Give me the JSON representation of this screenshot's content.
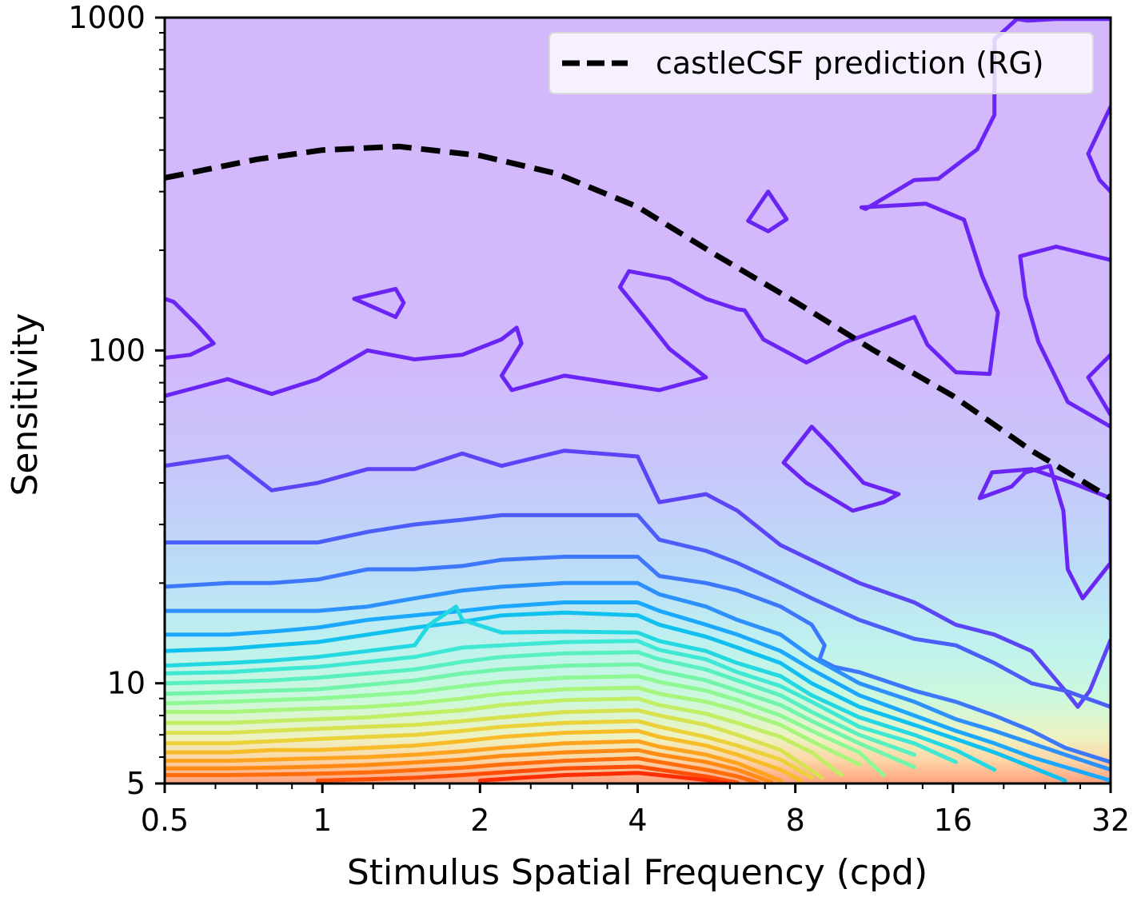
{
  "chart_data": {
    "type": "contour",
    "xlabel": "Stimulus Spatial Frequency (cpd)",
    "ylabel": "Sensitivity",
    "xscale": "log2",
    "yscale": "log10",
    "xlim": [
      0.5,
      32
    ],
    "ylim": [
      5,
      1000
    ],
    "x_ticks": [
      "0.5",
      "1",
      "2",
      "4",
      "8",
      "16",
      "32"
    ],
    "x_tick_values": [
      0.5,
      1,
      2,
      4,
      8,
      16,
      32
    ],
    "y_ticks": [
      "5",
      "10",
      "100",
      "1000"
    ],
    "y_tick_values": [
      5,
      10,
      100,
      1000
    ],
    "legend": {
      "placement": "top-right",
      "entries": [
        {
          "label": "castleCSF prediction (RG)",
          "style": "dashed",
          "color": "#000000"
        }
      ]
    },
    "series": [
      {
        "name": "castleCSF prediction (RG)",
        "style": "dashed",
        "x": [
          0.5,
          0.75,
          1.0,
          1.4,
          2.0,
          2.8,
          4.0,
          5.6,
          8.0,
          11.3,
          16.0,
          22.6,
          32.0
        ],
        "y": [
          330,
          375,
          400,
          410,
          385,
          340,
          270,
          195,
          140,
          100,
          73,
          50,
          36
        ]
      }
    ],
    "contours": [
      {
        "level": 1,
        "color": "#6a25f4",
        "x": [
          0.5,
          0.66,
          0.8,
          0.98,
          1.22,
          1.5,
          1.85,
          2.2,
          2.35,
          2.4,
          2.2,
          2.3,
          2.9,
          4.4,
          5.4,
          4.6,
          4.1,
          3.7,
          3.85,
          4.6,
          5.4,
          6.2,
          6.4,
          6.95,
          8.4,
          10.0,
          13.5,
          14.3,
          16.2,
          18.8,
          19.5,
          18.2,
          16.8,
          14.2,
          10.7,
          10.9,
          13.5,
          15.0,
          17.8,
          19.2,
          19.2,
          21.2,
          22.2,
          25.2,
          32.0
        ],
        "y": [
          73,
          82,
          74,
          82,
          100,
          94,
          97,
          108,
          117,
          105,
          84,
          76,
          84,
          76,
          83,
          101,
          127,
          155,
          173,
          164,
          143,
          133,
          132,
          108,
          92,
          106,
          126,
          104,
          86,
          85,
          130,
          167,
          247,
          276,
          269,
          266,
          325,
          328,
          402,
          510,
          860,
          990,
          980,
          990,
          990
        ]
      },
      {
        "level": 1,
        "color": "#6a25f4",
        "x": [
          0.5,
          0.52,
          0.58,
          0.62,
          0.56,
          0.5
        ],
        "y": [
          143,
          140,
          118,
          105,
          97,
          95
        ]
      },
      {
        "level": 1,
        "color": "#6a25f4",
        "x": [
          1.15,
          1.38,
          1.43,
          1.38,
          1.15
        ],
        "y": [
          143,
          153,
          139,
          126,
          143
        ]
      },
      {
        "level": 1,
        "color": "#6a25f4",
        "x": [
          6.5,
          7.1,
          7.7,
          7.1,
          6.5
        ],
        "y": [
          245,
          300,
          248,
          228,
          245
        ]
      },
      {
        "level": 1,
        "color": "#6a25f4",
        "x": [
          32.0,
          29.0,
          30.5,
          32.0
        ],
        "y": [
          540,
          390,
          325,
          300
        ]
      },
      {
        "level": 1,
        "color": "#6a25f4",
        "x": [
          32.0,
          25.2,
          21.5,
          22.0,
          23.3,
          26.5,
          32.0
        ],
        "y": [
          187,
          205,
          192,
          145,
          106,
          70,
          59
        ]
      },
      {
        "level": 1,
        "color": "#6a25f4",
        "x": [
          32.0,
          29.0,
          32.0
        ],
        "y": [
          97,
          83,
          64
        ]
      },
      {
        "level": 1,
        "color": "#6a25f4",
        "x": [
          7.6,
          8.6,
          9.3,
          10.8,
          12.6,
          11.8,
          10.3,
          8.4,
          7.6
        ],
        "y": [
          46,
          59,
          52,
          40,
          37,
          35,
          33,
          40,
          46
        ]
      },
      {
        "level": 1,
        "color": "#6a25f4",
        "x": [
          18.0,
          20.7,
          22.0,
          24.5,
          26.0,
          26.5,
          28.3,
          32.0,
          32.0,
          27.0,
          22.6,
          19.0,
          18.0
        ],
        "y": [
          36,
          39,
          43,
          45,
          33,
          22,
          18,
          23,
          36,
          40,
          44,
          43,
          36
        ]
      },
      {
        "level": 2,
        "color": "#5c44f7",
        "x": [
          0.5,
          0.66,
          0.8,
          0.98,
          1.22,
          1.5,
          1.85,
          2.2,
          2.9,
          4.0,
          4.4,
          5.4,
          6.2,
          7.5,
          10.6,
          13.5,
          16.2,
          19.2,
          22.6,
          26.2,
          27.7,
          29.2,
          32.0
        ],
        "y": [
          45,
          48,
          38,
          40,
          44,
          44,
          49,
          45,
          50,
          48,
          35,
          37,
          33,
          26,
          20,
          17.5,
          15,
          14,
          12.5,
          9.5,
          8.5,
          9.5,
          13.5
        ]
      },
      {
        "level": 3,
        "color": "#4c5ef9",
        "x": [
          0.5,
          0.66,
          0.8,
          0.98,
          1.22,
          1.5,
          1.85,
          2.2,
          2.9,
          4.0,
          4.4,
          5.4,
          6.2,
          7.5,
          8.6,
          10.6,
          13.5,
          16.2,
          19.2,
          22.6,
          26.2,
          32.0
        ],
        "y": [
          26.5,
          26.5,
          26.5,
          26.5,
          28.5,
          30,
          31,
          32,
          32,
          32,
          27,
          25,
          23,
          20,
          18,
          15.5,
          13.6,
          13,
          11.5,
          10,
          9.5,
          8.5
        ]
      },
      {
        "level": 4,
        "color": "#3d77fb",
        "x": [
          0.5,
          0.66,
          0.8,
          0.98,
          1.22,
          1.5,
          1.85,
          2.2,
          2.9,
          4.0,
          4.4,
          5.4,
          6.2,
          7.5,
          8.6,
          9.1,
          8.9,
          9.5,
          10.6,
          13.5,
          16.2,
          19.2,
          22.6,
          26.2,
          32.0
        ],
        "y": [
          19.5,
          20,
          20,
          20.5,
          22,
          22,
          22.5,
          23.5,
          24,
          24,
          21,
          20,
          19,
          17,
          15,
          13,
          11.8,
          11.2,
          10.8,
          9.5,
          8.8,
          8.0,
          7.2,
          6.4,
          5.8
        ]
      },
      {
        "level": 5,
        "color": "#2c91fd",
        "x": [
          0.5,
          0.66,
          0.8,
          0.98,
          1.22,
          1.5,
          1.85,
          2.2,
          2.9,
          4.0,
          4.4,
          5.4,
          6.2,
          7.5,
          8.6,
          10.6,
          13.5,
          16.2,
          19.2,
          22.6,
          26.2,
          32.0
        ],
        "y": [
          16.5,
          16.5,
          16.5,
          16.5,
          17,
          18,
          19,
          19.5,
          20,
          20,
          18.5,
          17,
          15.5,
          14,
          12,
          10,
          8.8,
          7.8,
          7.2,
          6.6,
          6.1,
          5.5
        ]
      },
      {
        "level": 6,
        "color": "#1ca8fe",
        "x": [
          0.5,
          0.66,
          0.8,
          0.98,
          1.22,
          1.5,
          1.85,
          2.2,
          2.9,
          4.0,
          4.4,
          5.4,
          6.2,
          7.5,
          8.6,
          10.6,
          13.5,
          16.2,
          19.2,
          22.6,
          26.2,
          32.0
        ],
        "y": [
          14,
          14,
          14.3,
          14.7,
          15.5,
          16,
          16.5,
          17,
          17.5,
          17.5,
          16.5,
          15,
          14,
          12.5,
          11,
          9.2,
          8.0,
          7.2,
          6.6,
          6.0,
          5.6,
          5.1
        ]
      },
      {
        "level": 7,
        "color": "#10c1f0",
        "x": [
          0.5,
          0.66,
          0.8,
          0.98,
          1.22,
          1.5,
          1.85,
          2.2,
          2.9,
          4.0,
          4.4,
          5.4,
          6.2,
          7.5,
          8.6,
          10.6,
          13.5,
          16.2,
          19.2,
          22.6,
          26.2
        ],
        "y": [
          12.5,
          12.7,
          13,
          13.3,
          14,
          14.7,
          15.3,
          16,
          16.3,
          16,
          15,
          13.8,
          12.8,
          11.5,
          10,
          8.5,
          7.5,
          6.8,
          6.2,
          5.6,
          5.1
        ]
      },
      {
        "level": 8,
        "color": "#24d8e2",
        "x": [
          0.5,
          0.66,
          0.8,
          0.98,
          1.22,
          1.5,
          1.6,
          1.8,
          1.85,
          2.2,
          2.9,
          4.0,
          4.4,
          5.4,
          6.2,
          7.5,
          8.6,
          10.6,
          13.5,
          16.2,
          19.2
        ],
        "y": [
          11.3,
          11.5,
          11.7,
          12,
          12.5,
          13,
          15,
          17,
          15.5,
          14.2,
          14.3,
          14.2,
          13.4,
          12.5,
          11.5,
          10.5,
          9.2,
          7.9,
          7.0,
          6.3,
          5.5
        ]
      },
      {
        "level": 9,
        "color": "#3ee8d3",
        "x": [
          0.5,
          0.66,
          0.8,
          0.98,
          1.22,
          1.5,
          1.85,
          2.2,
          2.9,
          4.0,
          4.4,
          5.4,
          6.2,
          7.5,
          8.6,
          10.6,
          13.5,
          16.2
        ],
        "y": [
          10.7,
          10.8,
          11,
          11.2,
          11.6,
          12,
          12.8,
          13,
          13.3,
          13.4,
          12.6,
          11.8,
          10.8,
          9.8,
          8.8,
          7.4,
          6.6,
          5.8
        ]
      },
      {
        "level": 10,
        "color": "#58f0c0",
        "x": [
          0.5,
          0.66,
          0.8,
          0.98,
          1.22,
          1.5,
          1.85,
          2.2,
          2.9,
          4.0,
          4.4,
          5.4,
          6.2,
          7.5,
          8.6,
          10.6,
          13.5
        ],
        "y": [
          10.0,
          10.1,
          10.2,
          10.4,
          10.7,
          11,
          11.6,
          12,
          12.3,
          12.4,
          11.8,
          11.0,
          10.2,
          9.2,
          8.2,
          7.0,
          6.1
        ]
      },
      {
        "level": 11,
        "color": "#72f5ab",
        "x": [
          0.5,
          0.66,
          0.8,
          0.98,
          1.22,
          1.5,
          1.85,
          2.2,
          2.9,
          4.0,
          4.4,
          5.4,
          6.2,
          7.5,
          8.6,
          10.6,
          13.5
        ],
        "y": [
          9.3,
          9.4,
          9.5,
          9.6,
          9.9,
          10.2,
          10.7,
          11,
          11.3,
          11.4,
          10.9,
          10.2,
          9.5,
          8.6,
          7.7,
          6.6,
          5.6
        ]
      },
      {
        "level": 12,
        "color": "#8df894",
        "x": [
          0.5,
          0.66,
          0.8,
          0.98,
          1.22,
          1.5,
          1.85,
          2.2,
          2.9,
          4.0,
          4.4,
          5.4,
          6.2,
          7.5,
          8.6,
          10.6,
          11.8
        ],
        "y": [
          8.7,
          8.8,
          8.9,
          9.0,
          9.2,
          9.4,
          9.8,
          10.1,
          10.4,
          10.5,
          10.1,
          9.5,
          8.9,
          8.0,
          7.2,
          6.2,
          5.3
        ]
      },
      {
        "level": 13,
        "color": "#a8f57c",
        "x": [
          0.5,
          0.66,
          0.8,
          0.98,
          1.22,
          1.5,
          1.85,
          2.2,
          2.9,
          4.0,
          4.4,
          5.4,
          6.2,
          7.5,
          8.6,
          10.6
        ],
        "y": [
          8.2,
          8.2,
          8.3,
          8.4,
          8.5,
          8.7,
          9.0,
          9.3,
          9.6,
          9.7,
          9.3,
          8.8,
          8.3,
          7.5,
          6.7,
          5.7
        ]
      },
      {
        "level": 14,
        "color": "#c1ee65",
        "x": [
          0.5,
          0.66,
          0.8,
          0.98,
          1.22,
          1.5,
          1.85,
          2.2,
          2.9,
          4.0,
          4.4,
          5.4,
          6.2,
          7.5,
          8.6,
          9.8
        ],
        "y": [
          7.6,
          7.6,
          7.7,
          7.8,
          7.9,
          8.1,
          8.3,
          8.6,
          8.9,
          9.0,
          8.6,
          8.1,
          7.6,
          6.9,
          6.2,
          5.3
        ]
      },
      {
        "level": 15,
        "color": "#d8e24f",
        "x": [
          0.5,
          0.66,
          0.8,
          0.98,
          1.22,
          1.5,
          1.85,
          2.2,
          2.9,
          4.0,
          4.4,
          5.4,
          6.2,
          7.5,
          9.0
        ],
        "y": [
          7.1,
          7.1,
          7.2,
          7.3,
          7.4,
          7.5,
          7.7,
          7.9,
          8.2,
          8.3,
          8.0,
          7.5,
          7.0,
          6.3,
          5.2
        ]
      },
      {
        "level": 16,
        "color": "#ecd23a",
        "x": [
          0.5,
          0.66,
          0.8,
          0.98,
          1.22,
          1.5,
          1.85,
          2.2,
          2.9,
          4.0,
          4.4,
          5.4,
          6.2,
          7.5,
          8.6
        ],
        "y": [
          6.6,
          6.6,
          6.7,
          6.8,
          6.9,
          7.0,
          7.2,
          7.4,
          7.6,
          7.7,
          7.4,
          6.9,
          6.5,
          5.9,
          5.2
        ]
      },
      {
        "level": 17,
        "color": "#f8bc28",
        "x": [
          0.5,
          0.66,
          0.8,
          0.98,
          1.22,
          1.5,
          1.85,
          2.2,
          2.9,
          4.0,
          4.4,
          5.4,
          6.2,
          7.5,
          8.2
        ],
        "y": [
          6.2,
          6.2,
          6.3,
          6.3,
          6.4,
          6.5,
          6.7,
          6.9,
          7.1,
          7.2,
          6.9,
          6.5,
          6.1,
          5.5,
          5.1
        ]
      },
      {
        "level": 18,
        "color": "#fea31d",
        "x": [
          0.5,
          0.66,
          0.8,
          0.98,
          1.22,
          1.5,
          1.85,
          2.2,
          2.9,
          4.0,
          4.4,
          5.4,
          6.2,
          7.5
        ],
        "y": [
          5.85,
          5.85,
          5.9,
          5.95,
          6.0,
          6.1,
          6.25,
          6.4,
          6.6,
          6.7,
          6.45,
          6.1,
          5.75,
          5.1
        ]
      },
      {
        "level": 19,
        "color": "#ff8a14",
        "x": [
          0.5,
          0.66,
          0.8,
          0.98,
          1.22,
          1.5,
          1.85,
          2.2,
          2.9,
          4.0,
          4.4,
          5.4,
          6.2,
          7.2
        ],
        "y": [
          5.55,
          5.55,
          5.58,
          5.62,
          5.68,
          5.78,
          5.9,
          6.05,
          6.2,
          6.3,
          6.1,
          5.8,
          5.5,
          5.05
        ]
      },
      {
        "level": 20,
        "color": "#ff6d0d",
        "x": [
          0.5,
          0.66,
          0.8,
          0.98,
          1.22,
          1.5,
          1.85,
          2.2,
          2.9,
          4.0,
          4.4,
          5.4,
          6.2,
          6.8
        ],
        "y": [
          5.3,
          5.3,
          5.32,
          5.35,
          5.4,
          5.48,
          5.58,
          5.7,
          5.85,
          5.95,
          5.8,
          5.5,
          5.25,
          5.02
        ]
      },
      {
        "level": 21,
        "color": "#ff4e07",
        "x": [
          0.98,
          1.22,
          1.5,
          1.85,
          2.2,
          2.9,
          4.0,
          4.4,
          5.4,
          6.2
        ],
        "y": [
          5.1,
          5.15,
          5.2,
          5.3,
          5.4,
          5.55,
          5.62,
          5.5,
          5.25,
          5.03
        ]
      },
      {
        "level": 22,
        "color": "#ff2d03",
        "x": [
          2.0,
          2.4,
          2.9,
          4.0,
          4.4,
          5.4,
          5.9
        ],
        "y": [
          5.1,
          5.2,
          5.3,
          5.38,
          5.3,
          5.12,
          5.02
        ]
      }
    ]
  }
}
